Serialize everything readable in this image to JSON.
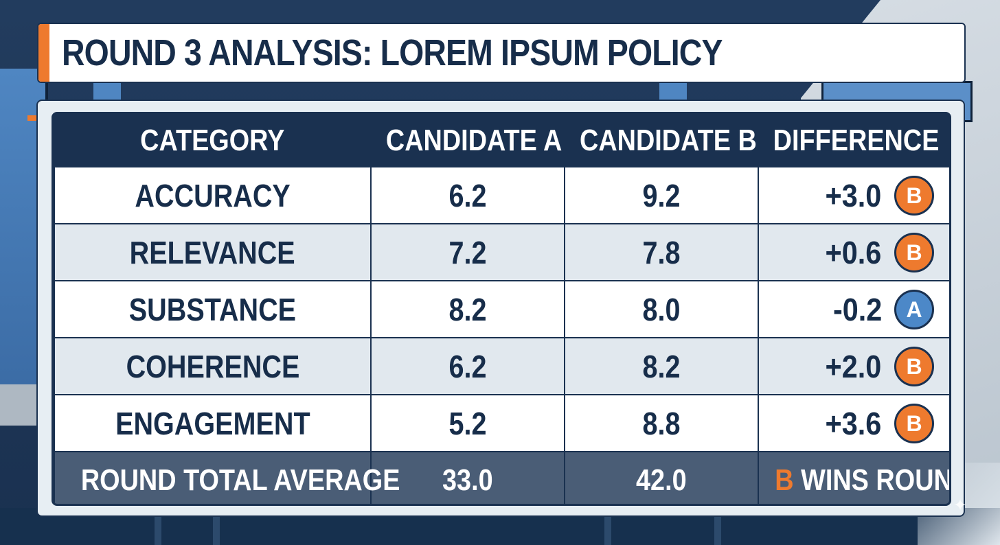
{
  "title": "ROUND 3 ANALYSIS: LOREM IPSUM POLICY",
  "colors": {
    "navy": "#1a3150",
    "orange": "#ee7a2e",
    "blue": "#4c88c8",
    "row_alt": "#e1e8ee",
    "footer": "#4a5d76"
  },
  "chart_data": {
    "type": "table",
    "columns": [
      "CATEGORY",
      "CANDIDATE A",
      "CANDIDATE B",
      "DIFFERENCE"
    ],
    "rows": [
      {
        "category": "ACCURACY",
        "a": "6.2",
        "b": "9.2",
        "difference": "+3.0",
        "winner": "B"
      },
      {
        "category": "RELEVANCE",
        "a": "7.2",
        "b": "7.8",
        "difference": "+0.6",
        "winner": "B"
      },
      {
        "category": "SUBSTANCE",
        "a": "8.2",
        "b": "8.0",
        "difference": "-0.2",
        "winner": "A"
      },
      {
        "category": "COHERENCE",
        "a": "6.2",
        "b": "8.2",
        "difference": "+2.0",
        "winner": "B"
      },
      {
        "category": "ENGAGEMENT",
        "a": "5.2",
        "b": "8.8",
        "difference": "+3.6",
        "winner": "B"
      }
    ],
    "footer": {
      "label": "ROUND TOTAL AVERAGE",
      "a": "33.0",
      "b": "42.0",
      "result_letter": "B",
      "result_text": "WINS ROUND"
    }
  }
}
